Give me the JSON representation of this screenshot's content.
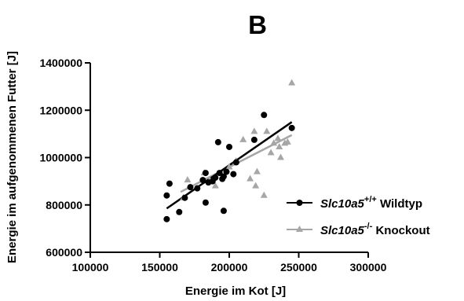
{
  "chart_data": {
    "type": "scatter",
    "panel_label": "B",
    "xlabel": "Energie im Kot [J]",
    "ylabel": "Energie im aufgenommenen Futter [J]",
    "xlim": [
      100000,
      300000
    ],
    "ylim": [
      600000,
      1400000
    ],
    "x_ticks": [
      "100000",
      "150000",
      "200000",
      "250000",
      "300000"
    ],
    "y_ticks": [
      "600000",
      "800000",
      "1000000",
      "1200000",
      "1400000"
    ],
    "legend_position": "right",
    "series": [
      {
        "gene": "Slc10a5",
        "genotype": "+/+",
        "group": "Wildtyp",
        "marker": "circle",
        "color": "#000000",
        "points": [
          [
            155000,
            740000
          ],
          [
            155000,
            840000
          ],
          [
            157000,
            890000
          ],
          [
            164000,
            770000
          ],
          [
            168000,
            830000
          ],
          [
            172000,
            875000
          ],
          [
            177000,
            870000
          ],
          [
            181000,
            905000
          ],
          [
            183000,
            935000
          ],
          [
            183000,
            810000
          ],
          [
            185000,
            895000
          ],
          [
            188000,
            900000
          ],
          [
            190000,
            915000
          ],
          [
            192000,
            1065000
          ],
          [
            193000,
            935000
          ],
          [
            195000,
            910000
          ],
          [
            196000,
            920000
          ],
          [
            196000,
            775000
          ],
          [
            198000,
            940000
          ],
          [
            200000,
            1045000
          ],
          [
            203000,
            930000
          ],
          [
            205000,
            980000
          ],
          [
            225000,
            1180000
          ],
          [
            218000,
            1075000
          ],
          [
            245000,
            1125000
          ]
        ],
        "fit": [
          [
            155000,
            785000
          ],
          [
            245000,
            1150000
          ]
        ]
      },
      {
        "gene": "Slc10a5",
        "genotype": "-/-",
        "group": "Knockout",
        "marker": "triangle",
        "color": "#a6a6a6",
        "points": [
          [
            167000,
            830000
          ],
          [
            170000,
            905000
          ],
          [
            182000,
            935000
          ],
          [
            186000,
            905000
          ],
          [
            190000,
            880000
          ],
          [
            200000,
            960000
          ],
          [
            205000,
            985000
          ],
          [
            210000,
            1075000
          ],
          [
            215000,
            910000
          ],
          [
            218000,
            1110000
          ],
          [
            219000,
            880000
          ],
          [
            220000,
            940000
          ],
          [
            225000,
            840000
          ],
          [
            227000,
            1110000
          ],
          [
            230000,
            1020000
          ],
          [
            232000,
            1060000
          ],
          [
            235000,
            1080000
          ],
          [
            236000,
            1045000
          ],
          [
            237000,
            1000000
          ],
          [
            240000,
            1060000
          ],
          [
            242000,
            1065000
          ],
          [
            245000,
            1315000
          ]
        ],
        "fit": [
          [
            165000,
            855000
          ],
          [
            245000,
            1095000
          ]
        ]
      }
    ]
  }
}
